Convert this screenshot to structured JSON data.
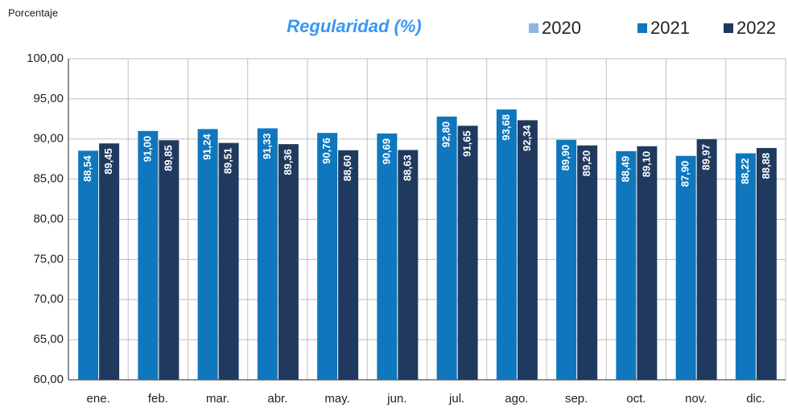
{
  "chart_data": {
    "type": "bar",
    "title": "Regularidad (%)",
    "y_label": "Porcentaje",
    "categories": [
      "ene.",
      "feb.",
      "mar.",
      "abr.",
      "may.",
      "jun.",
      "jul.",
      "ago.",
      "sep.",
      "oct.",
      "nov.",
      "dic."
    ],
    "series": [
      {
        "name": "2020",
        "color": "#8db4e2",
        "values": [
          null,
          null,
          null,
          null,
          null,
          null,
          null,
          null,
          null,
          null,
          null,
          null
        ]
      },
      {
        "name": "2021",
        "color": "#0f77bd",
        "values": [
          88.54,
          91.0,
          91.24,
          91.33,
          90.76,
          90.69,
          92.8,
          93.68,
          89.9,
          88.49,
          87.9,
          88.22
        ],
        "value_labels": [
          "88,54",
          "91,00",
          "91,24",
          "91,33",
          "90,76",
          "90,69",
          "92,80",
          "93,68",
          "89,90",
          "88,49",
          "87,90",
          "88,22"
        ]
      },
      {
        "name": "2022",
        "color": "#203a5f",
        "values": [
          89.45,
          89.85,
          89.51,
          89.36,
          88.6,
          88.63,
          91.65,
          92.34,
          89.2,
          89.1,
          89.97,
          88.88
        ],
        "value_labels": [
          "89,45",
          "89,85",
          "89,51",
          "89,36",
          "88,60",
          "88,63",
          "91,65",
          "92,34",
          "89,20",
          "89,10",
          "89,97",
          "88,88"
        ]
      }
    ],
    "ylim": [
      60,
      100
    ],
    "yticks": [
      {
        "value": 60,
        "label": "60,00"
      },
      {
        "value": 65,
        "label": "65,00"
      },
      {
        "value": 70,
        "label": "70,00"
      },
      {
        "value": 75,
        "label": "75,00"
      },
      {
        "value": 80,
        "label": "80,00"
      },
      {
        "value": 85,
        "label": "85,00"
      },
      {
        "value": 90,
        "label": "90,00"
      },
      {
        "value": 95,
        "label": "95,00"
      },
      {
        "value": 100,
        "label": "100,00"
      }
    ],
    "grid": true,
    "legend": "top-right"
  }
}
